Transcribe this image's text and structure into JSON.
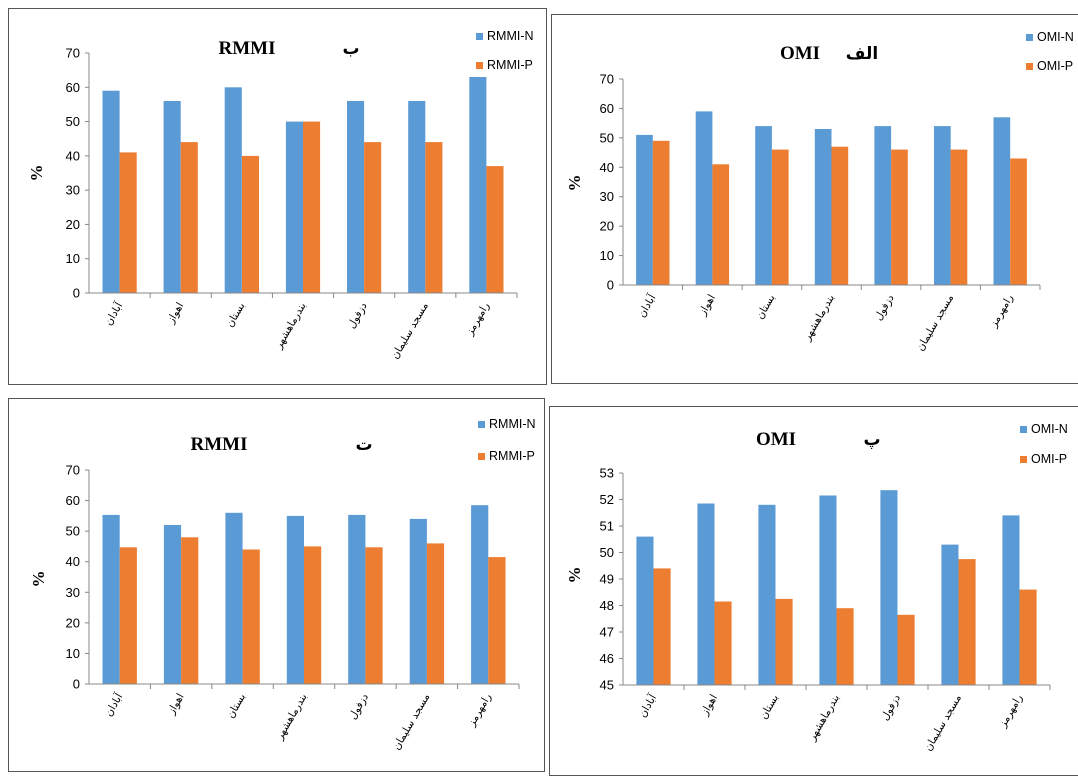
{
  "colors": {
    "n": "#5b9bd5",
    "p": "#ed7d31",
    "axis": "#888888",
    "border": "#555555"
  },
  "chart_data": [
    {
      "type": "bar",
      "panel": "top-left",
      "title": "RMMI",
      "letter": "ب",
      "ylabel": "%",
      "ylim": [
        0,
        70
      ],
      "yticks": [
        0,
        10,
        20,
        30,
        40,
        50,
        60,
        70
      ],
      "categories": [
        "آبادان",
        "اهواز",
        "بستان",
        "بندرماهشهر",
        "دزفول",
        "مسجد سلیمان",
        "رامهرمز"
      ],
      "series": [
        {
          "name": "RMMI-N",
          "values": [
            59,
            56,
            60,
            50,
            56,
            56,
            63
          ]
        },
        {
          "name": "RMMI-P",
          "values": [
            41,
            44,
            40,
            50,
            44,
            44,
            37
          ]
        }
      ],
      "legend_position": "top-right",
      "grid": false
    },
    {
      "type": "bar",
      "panel": "top-right",
      "title": "OMI",
      "letter": "الف",
      "ylabel": "%",
      "ylim": [
        0,
        70
      ],
      "yticks": [
        0,
        10,
        20,
        30,
        40,
        50,
        60,
        70
      ],
      "categories": [
        "آبادان",
        "اهواز",
        "بستان",
        "بندرماهشهر",
        "دزفول",
        "مسجد سلیمان",
        "رامهرمز"
      ],
      "series": [
        {
          "name": "OMI-N",
          "values": [
            51,
            59,
            54,
            53,
            54,
            54,
            57
          ]
        },
        {
          "name": "OMI-P",
          "values": [
            49,
            41,
            46,
            47,
            46,
            46,
            43
          ]
        }
      ],
      "legend_position": "top-right",
      "grid": false
    },
    {
      "type": "bar",
      "panel": "bottom-left",
      "title": "RMMI",
      "letter": "ت",
      "ylabel": "%",
      "ylim": [
        0,
        70
      ],
      "yticks": [
        0,
        10,
        20,
        30,
        40,
        50,
        60,
        70
      ],
      "categories": [
        "آبادان",
        "اهواز",
        "بستان",
        "بندرماهشهر",
        "دزفول",
        "مسجد سلیمان",
        "رامهرمز"
      ],
      "series": [
        {
          "name": "RMMI-N",
          "values": [
            55.3,
            52,
            56,
            55,
            55.3,
            54,
            58.5
          ]
        },
        {
          "name": "RMMI-P",
          "values": [
            44.7,
            48,
            44,
            45,
            44.7,
            46,
            41.5
          ]
        }
      ],
      "legend_position": "top-right",
      "grid": false
    },
    {
      "type": "bar",
      "panel": "bottom-right",
      "title": "OMI",
      "letter": "پ",
      "ylabel": "%",
      "ylim": [
        45,
        53
      ],
      "yticks": [
        45,
        46,
        47,
        48,
        49,
        50,
        51,
        52,
        53
      ],
      "categories": [
        "آبادان",
        "اهواز",
        "بستان",
        "بندرماهشهر",
        "دزفول",
        "مسجد سلیمان",
        "رامهرمز"
      ],
      "series": [
        {
          "name": "OMI-N",
          "values": [
            50.6,
            51.85,
            51.8,
            52.15,
            52.35,
            50.3,
            51.4
          ]
        },
        {
          "name": "OMI-P",
          "values": [
            49.4,
            48.15,
            48.25,
            47.9,
            47.65,
            49.75,
            48.6
          ]
        }
      ],
      "legend_position": "top-right",
      "grid": false
    }
  ]
}
